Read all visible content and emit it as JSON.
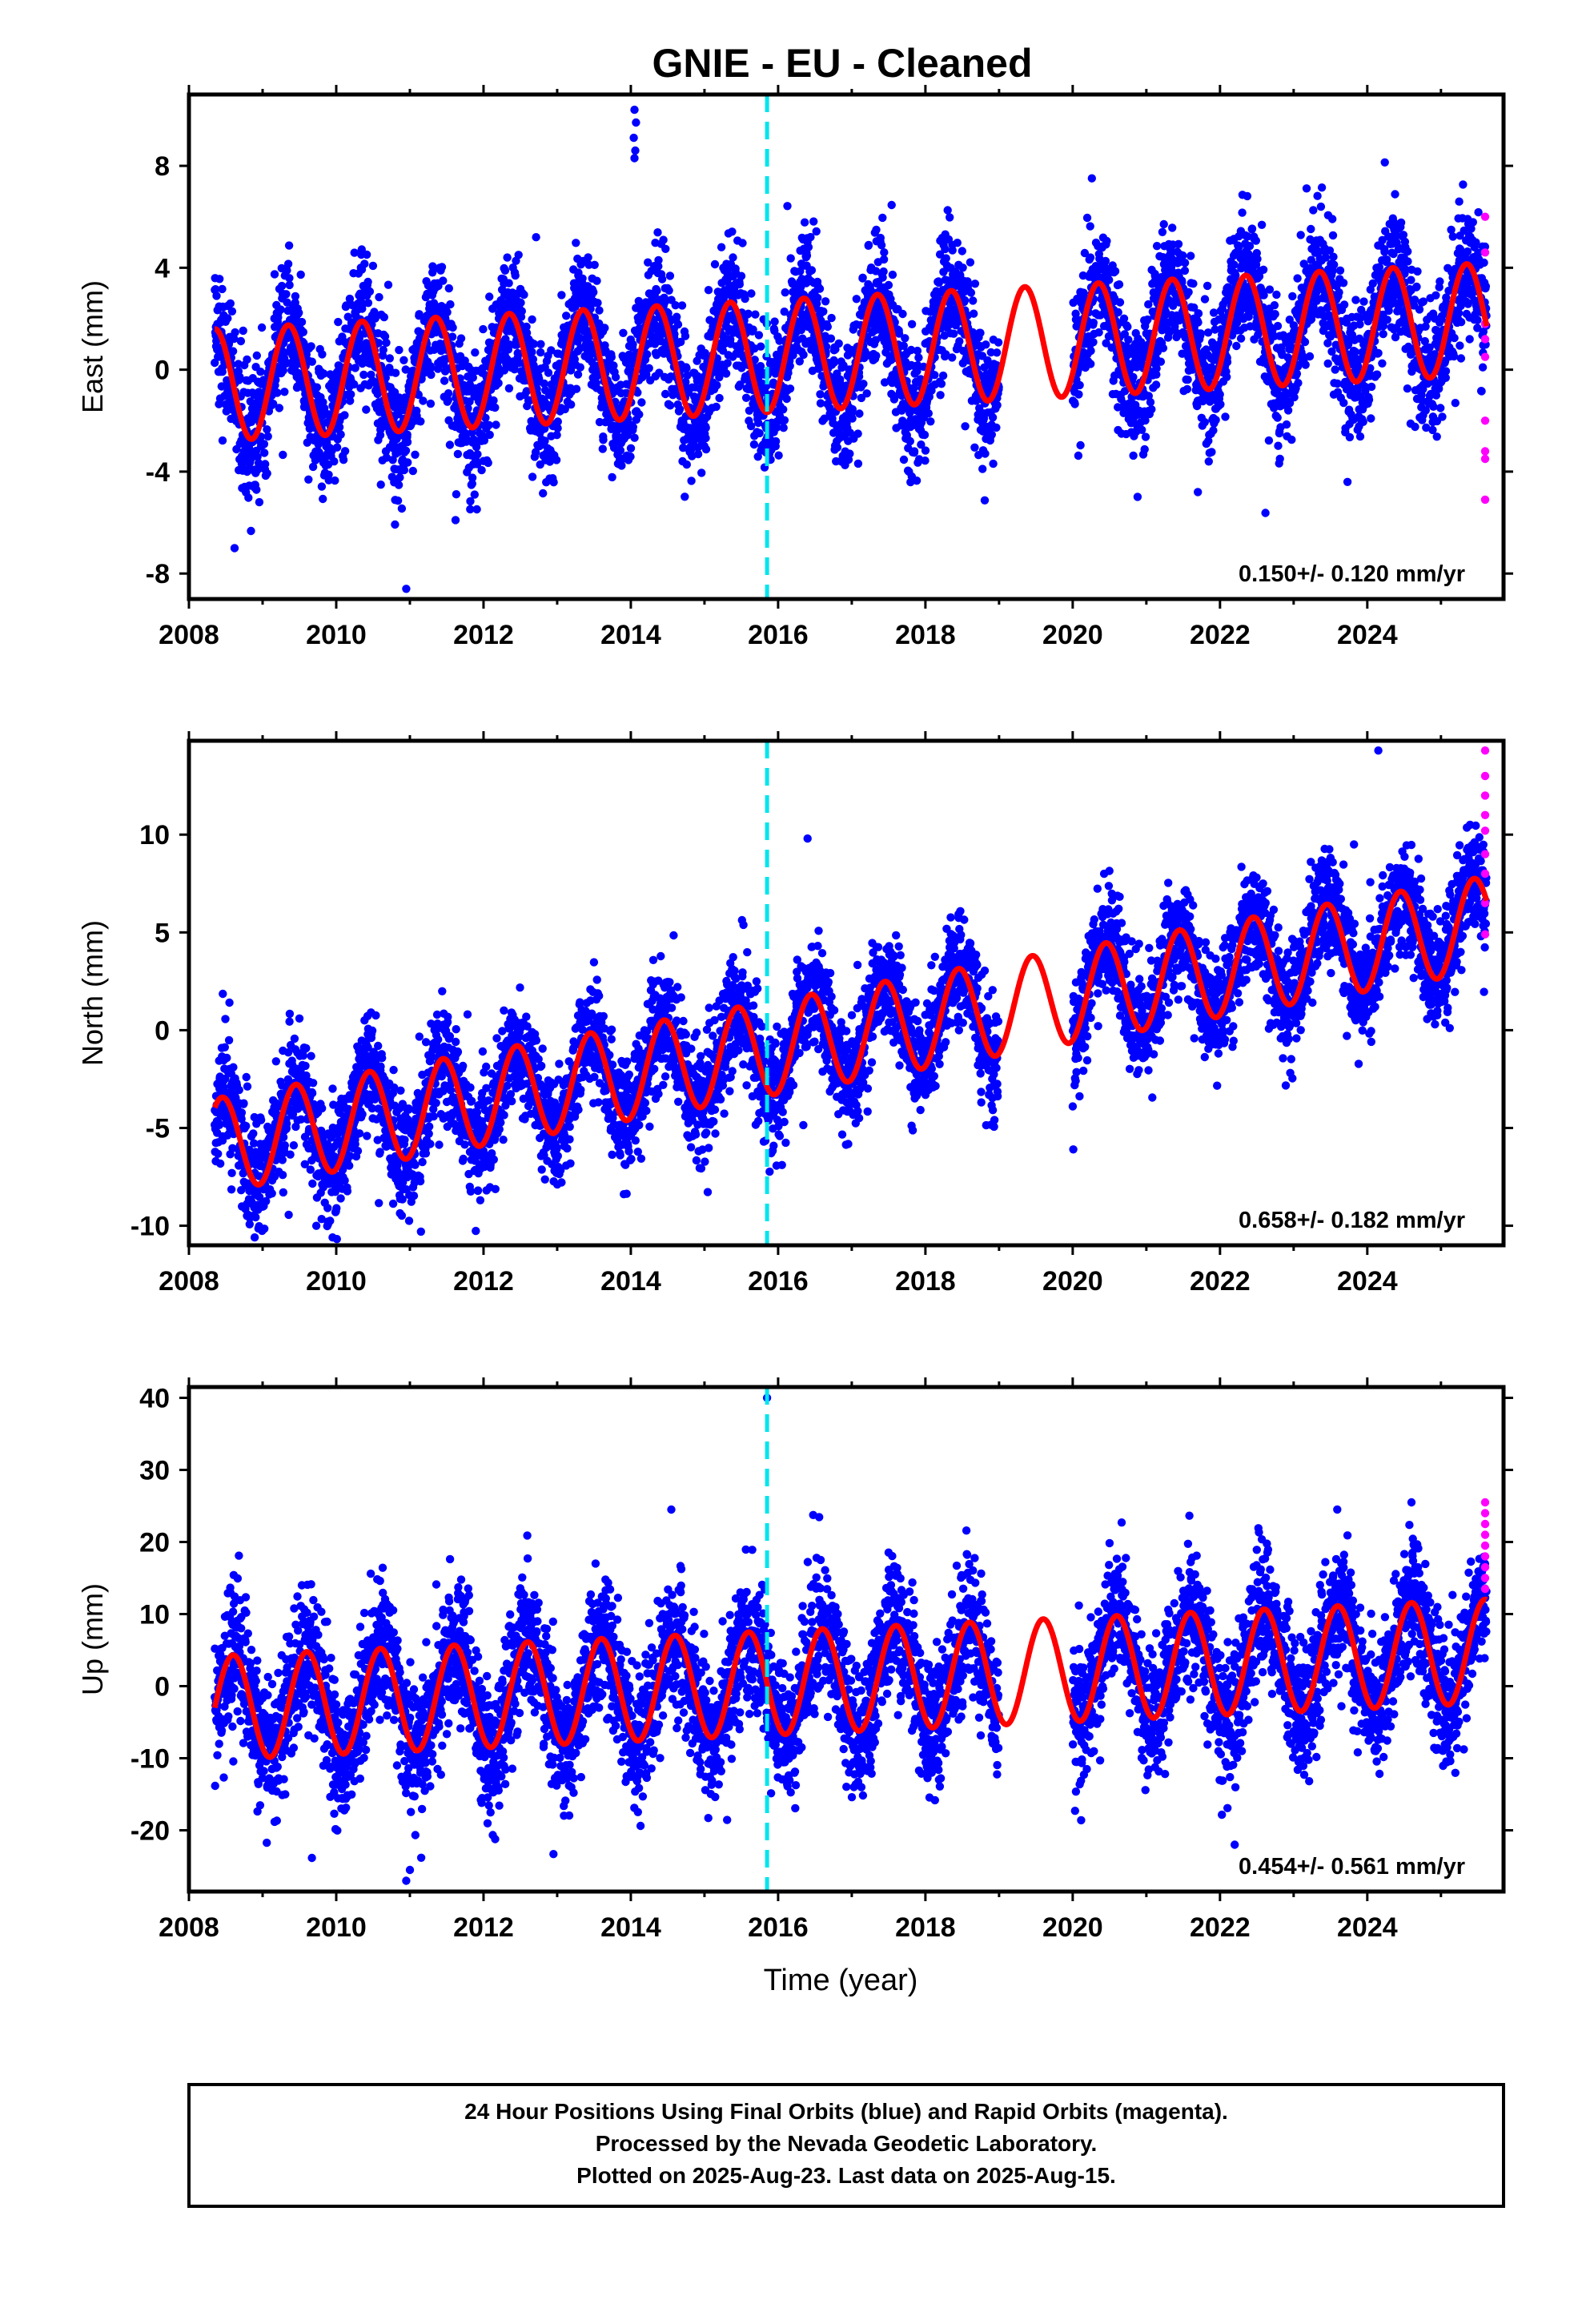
{
  "title": "GNIE  - EU - Cleaned",
  "xlabel": "Time (year)",
  "footer_lines": [
    "24 Hour Positions Using Final Orbits (blue) and Rapid Orbits (magenta).",
    "Processed by the Nevada Geodetic Laboratory.",
    "Plotted on 2025-Aug-23. Last data on 2025-Aug-15."
  ],
  "colors": {
    "final_orbits": "#0000ff",
    "rapid_orbits": "#ff00ff",
    "model": "#ff0000",
    "antenna_change": "#00e5ee",
    "frame": "#000000"
  },
  "chart_data": [
    {
      "type": "scatter",
      "component": "east",
      "ylabel": "East (mm)",
      "rate_label": "0.150+/- 0.120 mm/yr",
      "xlim": [
        2008.0,
        2025.85
      ],
      "ylim": [
        -9.0,
        10.8
      ],
      "xticks": [
        2008,
        2010,
        2012,
        2014,
        2016,
        2018,
        2020,
        2022,
        2024
      ],
      "yticks": [
        -8,
        -4,
        0,
        4,
        8
      ],
      "time_span": [
        2008.35,
        2025.62
      ],
      "data_gap": [
        2019.0,
        2020.0
      ],
      "trend_rate": 0.15,
      "model_offset": -0.6,
      "annual_amplitude": 2.2,
      "annual_peak": 0.35,
      "scatter_sd": 1.3,
      "antenna_change_epoch": 2015.85,
      "rapid_orbit_values": [
        6.0,
        4.6,
        1.8,
        1.2,
        0.5,
        -2.0,
        -3.2,
        -3.5,
        -5.1
      ],
      "outliers": [
        {
          "x": 2014.05,
          "y": 10.2
        },
        {
          "x": 2014.07,
          "y": 9.7
        },
        {
          "x": 2014.04,
          "y": 9.1
        },
        {
          "x": 2014.06,
          "y": 8.6
        },
        {
          "x": 2014.05,
          "y": 8.3
        },
        {
          "x": 2010.95,
          "y": -8.6
        },
        {
          "x": 2008.62,
          "y": -7.0
        },
        {
          "x": 2011.62,
          "y": -5.9
        },
        {
          "x": 2021.7,
          "y": -4.8
        }
      ]
    },
    {
      "type": "scatter",
      "component": "north",
      "ylabel": "North (mm)",
      "rate_label": "0.658+/- 0.182 mm/yr",
      "xlim": [
        2008.0,
        2025.85
      ],
      "ylim": [
        -11.0,
        14.8
      ],
      "xticks": [
        2008,
        2010,
        2012,
        2014,
        2016,
        2018,
        2020,
        2022,
        2024
      ],
      "yticks": [
        -10,
        -5,
        0,
        5,
        10
      ],
      "time_span": [
        2008.35,
        2025.62
      ],
      "data_gap": [
        2019.0,
        2020.0
      ],
      "trend_rate": 0.658,
      "model_offset": -5.9,
      "annual_amplitude": 2.4,
      "annual_peak": 0.45,
      "scatter_sd": 1.4,
      "antenna_change_epoch": 2015.85,
      "rapid_orbit_values": [
        14.3,
        13.0,
        12.0,
        11.0,
        10.2,
        9.0,
        8.0,
        6.5,
        4.9
      ],
      "outliers": [
        {
          "x": 2024.15,
          "y": 14.3
        },
        {
          "x": 2016.4,
          "y": 9.8
        },
        {
          "x": 2020.0,
          "y": -3.9
        },
        {
          "x": 2009.95,
          "y": -10.6
        },
        {
          "x": 2011.15,
          "y": -10.3
        }
      ]
    },
    {
      "type": "scatter",
      "component": "up",
      "ylabel": "Up (mm)",
      "rate_label": "0.454+/- 0.561 mm/yr",
      "xlim": [
        2008.0,
        2025.85
      ],
      "ylim": [
        -28.5,
        41.5
      ],
      "xticks": [
        2008,
        2010,
        2012,
        2014,
        2016,
        2018,
        2020,
        2022,
        2024
      ],
      "yticks": [
        -20,
        -10,
        0,
        10,
        20,
        30,
        40
      ],
      "time_span": [
        2008.35,
        2025.62
      ],
      "data_gap": [
        2019.0,
        2020.0
      ],
      "trend_rate": 0.454,
      "model_offset": -3.0,
      "annual_amplitude": 7.2,
      "annual_peak": 0.6,
      "scatter_sd": 4.6,
      "antenna_change_epoch": 2015.85,
      "rapid_orbit_values": [
        25.5,
        24.0,
        22.5,
        21.0,
        19.5,
        18.0,
        16.5,
        15.0,
        13.5
      ],
      "outliers": [
        {
          "x": 2015.85,
          "y": 40.0
        },
        {
          "x": 2014.55,
          "y": 24.5
        },
        {
          "x": 2024.6,
          "y": 25.5
        },
        {
          "x": 2012.95,
          "y": -23.3
        },
        {
          "x": 2022.2,
          "y": -22.0
        },
        {
          "x": 2010.95,
          "y": -27.0
        },
        {
          "x": 2011.0,
          "y": -25.5
        }
      ]
    }
  ]
}
